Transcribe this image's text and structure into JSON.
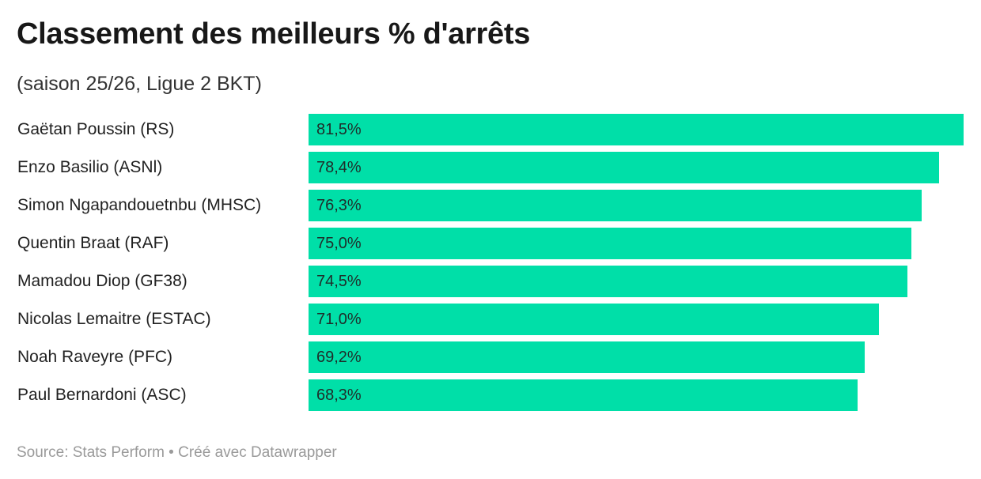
{
  "title": "Classement des meilleurs % d'arrêts",
  "subtitle": "(saison 25/26, Ligue 2 BKT)",
  "footer": "Source: Stats Perform • Créé avec Datawrapper",
  "colors": {
    "bar": "#00dfa8"
  },
  "chart_data": {
    "type": "bar",
    "orientation": "horizontal",
    "title": "Classement des meilleurs % d'arrêts",
    "subtitle": "(saison 25/26, Ligue 2 BKT)",
    "categories": [
      "Gaëtan Poussin (RS)",
      "Enzo Basilio (ASNl)",
      "Simon Ngapandouetnbu (MHSC)",
      "Quentin Braat (RAF)",
      "Mamadou Diop (GF38)",
      "Nicolas Lemaitre (ESTAC)",
      "Noah Raveyre (PFC)",
      "Paul Bernardoni (ASC)"
    ],
    "values": [
      81.5,
      78.4,
      76.3,
      75.0,
      74.5,
      71.0,
      69.2,
      68.3
    ],
    "value_labels": [
      "81,5%",
      "78,4%",
      "76,3%",
      "75,0%",
      "74,5%",
      "71,0%",
      "69,2%",
      "68,3%"
    ],
    "xlim": [
      0,
      81.5
    ],
    "grid": false
  }
}
